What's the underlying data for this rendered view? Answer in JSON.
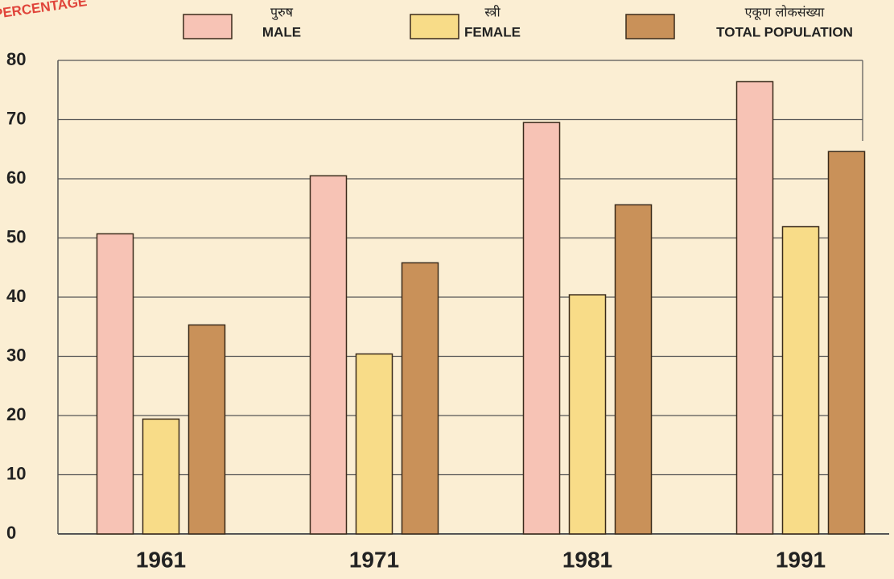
{
  "chart_data": {
    "type": "bar",
    "axis_label": "PERCENTAGE",
    "categories": [
      "1961",
      "1971",
      "1981",
      "1991"
    ],
    "series": [
      {
        "name": "MALE",
        "local_name": "पुरुष",
        "color": "#f7c3b5",
        "values": [
          50.7,
          60.5,
          69.5,
          76.4
        ]
      },
      {
        "name": "FEMALE",
        "local_name": "स्त्री",
        "color": "#f8dc88",
        "values": [
          19.4,
          30.4,
          40.4,
          51.9
        ]
      },
      {
        "name": "TOTAL POPULATION",
        "local_name": "एकूण लोकसंख्या",
        "color": "#c99159",
        "values": [
          35.3,
          45.8,
          55.6,
          64.6
        ]
      }
    ],
    "ylim": [
      0,
      80
    ],
    "yticks": [
      0,
      10,
      20,
      30,
      40,
      50,
      60,
      70,
      80
    ],
    "grid": true
  }
}
